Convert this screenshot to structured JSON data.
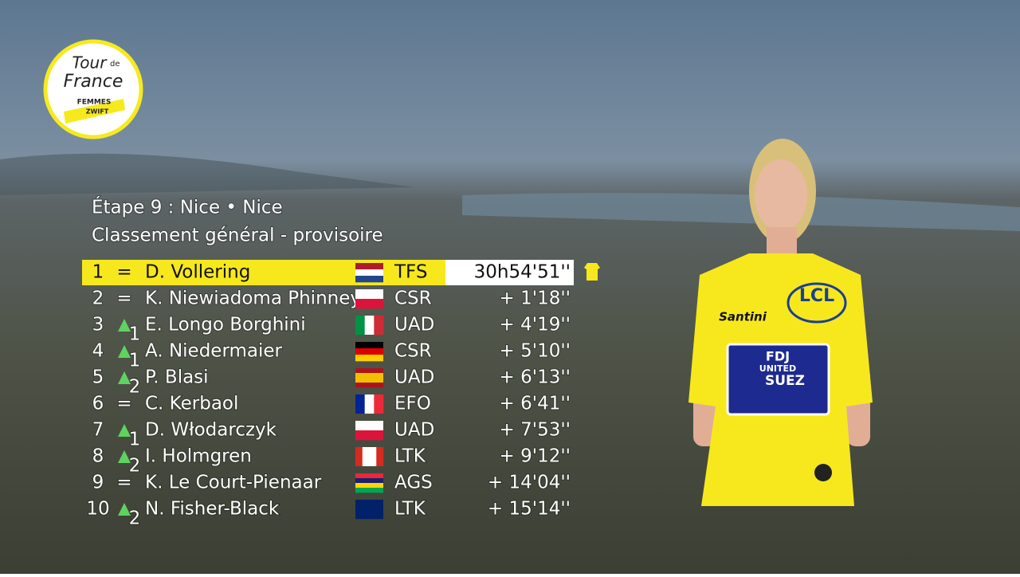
{
  "logo": {
    "line1": "Tour",
    "line2": "de",
    "line3": "France",
    "line4": "FEMMES",
    "line5": "ZWIFT"
  },
  "header": {
    "title": "Étape 9 : Nice • Nice",
    "subtitle": "Classement général - provisoire"
  },
  "table": {
    "rows": [
      [
        "1",
        "=",
        "D. Vollering",
        "TFS",
        "30h54'51''"
      ],
      [
        "2",
        "=",
        "K. Niewiadoma Phinney",
        "CSR",
        "+ 1'18''"
      ],
      [
        "3",
        "1",
        "E. Longo Borghini",
        "UAD",
        "+ 4'19''"
      ],
      [
        "4",
        "1",
        "A. Niedermaier",
        "CSR",
        "+ 5'10''"
      ],
      [
        "5",
        "2",
        "P. Blasi",
        "UAD",
        "+ 6'13''"
      ],
      [
        "6",
        "=",
        "C. Kerbaol",
        "EFO",
        "+ 6'41''"
      ],
      [
        "7",
        "1",
        "D. Włodarczyk",
        "UAD",
        "+ 7'53''"
      ],
      [
        "8",
        "2",
        "I. Holmgren",
        "LTK",
        "+ 9'12''"
      ],
      [
        "9",
        "=",
        "K. Le Court-Pienaar",
        "AGS",
        "+ 14'04''"
      ],
      [
        "10",
        "2",
        "N. Fisher-Black",
        "LTK",
        "+ 15'14''"
      ]
    ]
  },
  "jersey": {
    "sponsor": "LCL",
    "team1": "FDJ",
    "team2": "UNITED",
    "team3": "SUEZ",
    "maker": "Santini"
  }
}
